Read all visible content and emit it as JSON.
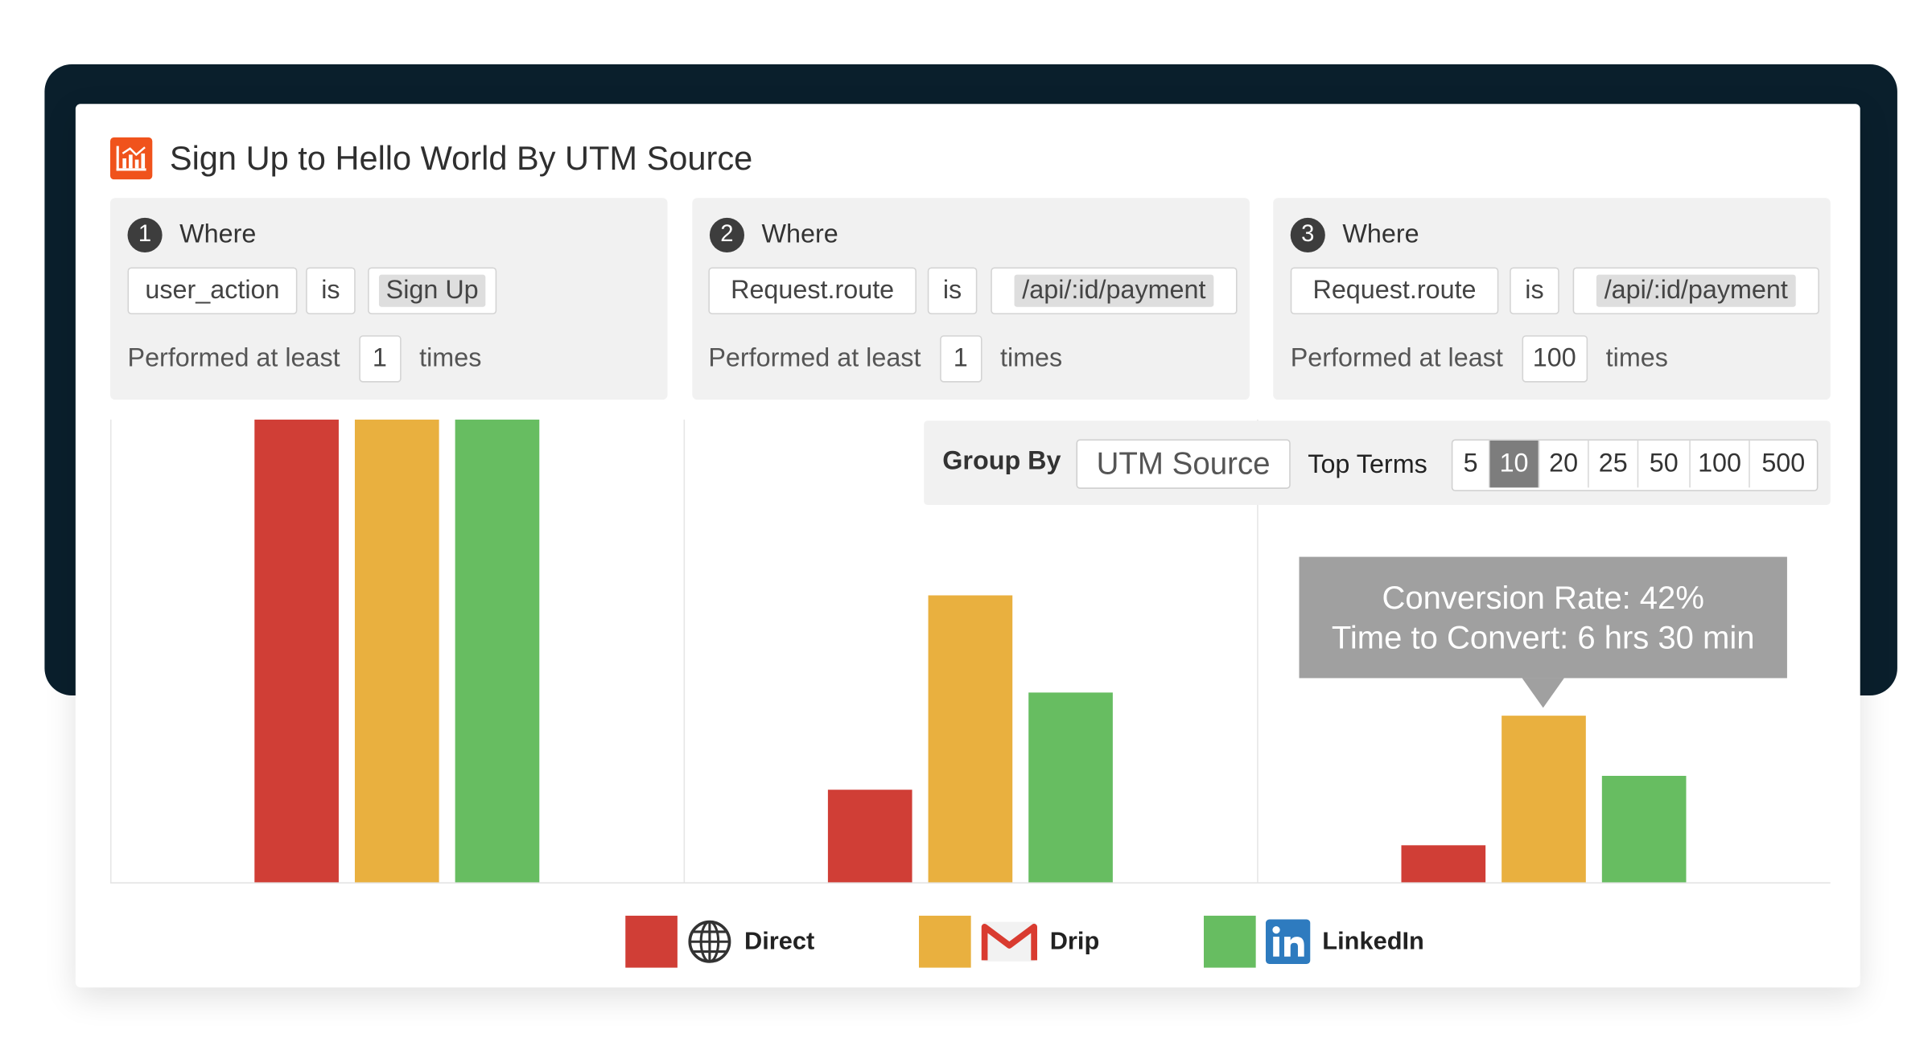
{
  "title": "Sign Up to Hello World By UTM Source",
  "steps": [
    {
      "num": "1",
      "where": "Where",
      "field": "user_action",
      "op": "is",
      "value": "Sign Up",
      "perf_label": "Performed at least",
      "count": "1",
      "times": "times"
    },
    {
      "num": "2",
      "where": "Where",
      "field": "Request.route",
      "op": "is",
      "value": "/api/:id/payment",
      "perf_label": "Performed at least",
      "count": "1",
      "times": "times"
    },
    {
      "num": "3",
      "where": "Where",
      "field": "Request.route",
      "op": "is",
      "value": "/api/:id/payment",
      "perf_label": "Performed at least",
      "count": "100",
      "times": "times"
    }
  ],
  "group_by": {
    "label": "Group By",
    "value": "UTM Source"
  },
  "top_terms": {
    "label": "Top Terms",
    "options": [
      "5",
      "10",
      "20",
      "25",
      "50",
      "100",
      "500"
    ],
    "selected": "10"
  },
  "tooltip": {
    "line1": "Conversion Rate: 42%",
    "line2": "Time to Convert: 6 hrs 30 min"
  },
  "legend": [
    {
      "label": "Direct",
      "icon": "globe-icon",
      "color": "#d03e36"
    },
    {
      "label": "Drip",
      "icon": "gmail-icon",
      "color": "#e9b03f"
    },
    {
      "label": "LinkedIn",
      "icon": "linkedin-icon",
      "color": "#67bd61"
    }
  ],
  "chart_data": {
    "type": "bar",
    "categories": [
      "1",
      "2",
      "3"
    ],
    "series": [
      {
        "name": "Direct",
        "values": [
          100,
          20,
          8
        ]
      },
      {
        "name": "Drip",
        "values": [
          100,
          62,
          36
        ]
      },
      {
        "name": "LinkedIn",
        "values": [
          100,
          41,
          23
        ]
      }
    ],
    "ylim": [
      0,
      100
    ],
    "colors": [
      "#d03e36",
      "#e9b03f",
      "#67bd61"
    ],
    "grid": false,
    "legend_position": "bottom"
  }
}
